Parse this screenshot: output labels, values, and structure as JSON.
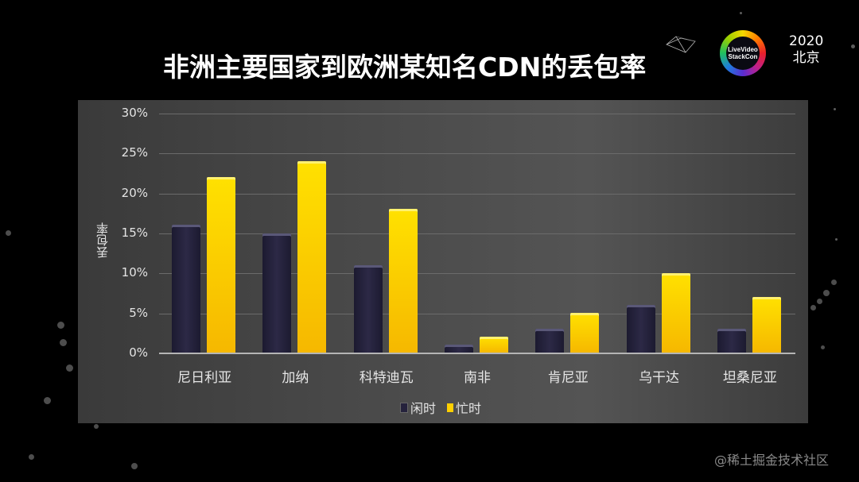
{
  "slide": {
    "title": "非洲主要国家到欧洲某知名CDN的丢包率",
    "logo": {
      "line1": "LiveVideo",
      "line2": "StackCon",
      "icon": "livevideostackcon-logo-icon"
    },
    "event_year": "2020",
    "event_city": "北京",
    "watermark": "@稀土掘金技术社区"
  },
  "axis": {
    "ylabel": "丢包率",
    "yticks": [
      "30%",
      "25%",
      "20%",
      "15%",
      "10%",
      "5%",
      "0%"
    ]
  },
  "legend": {
    "idle": "闲时",
    "busy": "忙时"
  },
  "colors": {
    "idle": "#25223c",
    "busy": "#ffd000",
    "panel": "#484848",
    "background": "#000000"
  },
  "categories": [
    "尼日利亚",
    "加纳",
    "科特迪瓦",
    "南非",
    "肯尼亚",
    "乌干达",
    "坦桑尼亚"
  ],
  "chart_data": {
    "type": "bar",
    "title": "非洲主要国家到欧洲某知名CDN的丢包率",
    "xlabel": "",
    "ylabel": "丢包率",
    "categories": [
      "尼日利亚",
      "加纳",
      "科特迪瓦",
      "南非",
      "肯尼亚",
      "乌干达",
      "坦桑尼亚"
    ],
    "series": [
      {
        "name": "闲时",
        "color": "#25223c",
        "values": [
          16,
          15,
          11,
          1,
          3,
          6,
          3
        ]
      },
      {
        "name": "忙时",
        "color": "#ffd000",
        "values": [
          22,
          24,
          18,
          2,
          5,
          10,
          7
        ]
      }
    ],
    "unit": "%",
    "ylim": [
      0,
      30
    ],
    "yticks": [
      0,
      5,
      10,
      15,
      20,
      25,
      30
    ],
    "grid": true,
    "legend_position": "bottom"
  }
}
